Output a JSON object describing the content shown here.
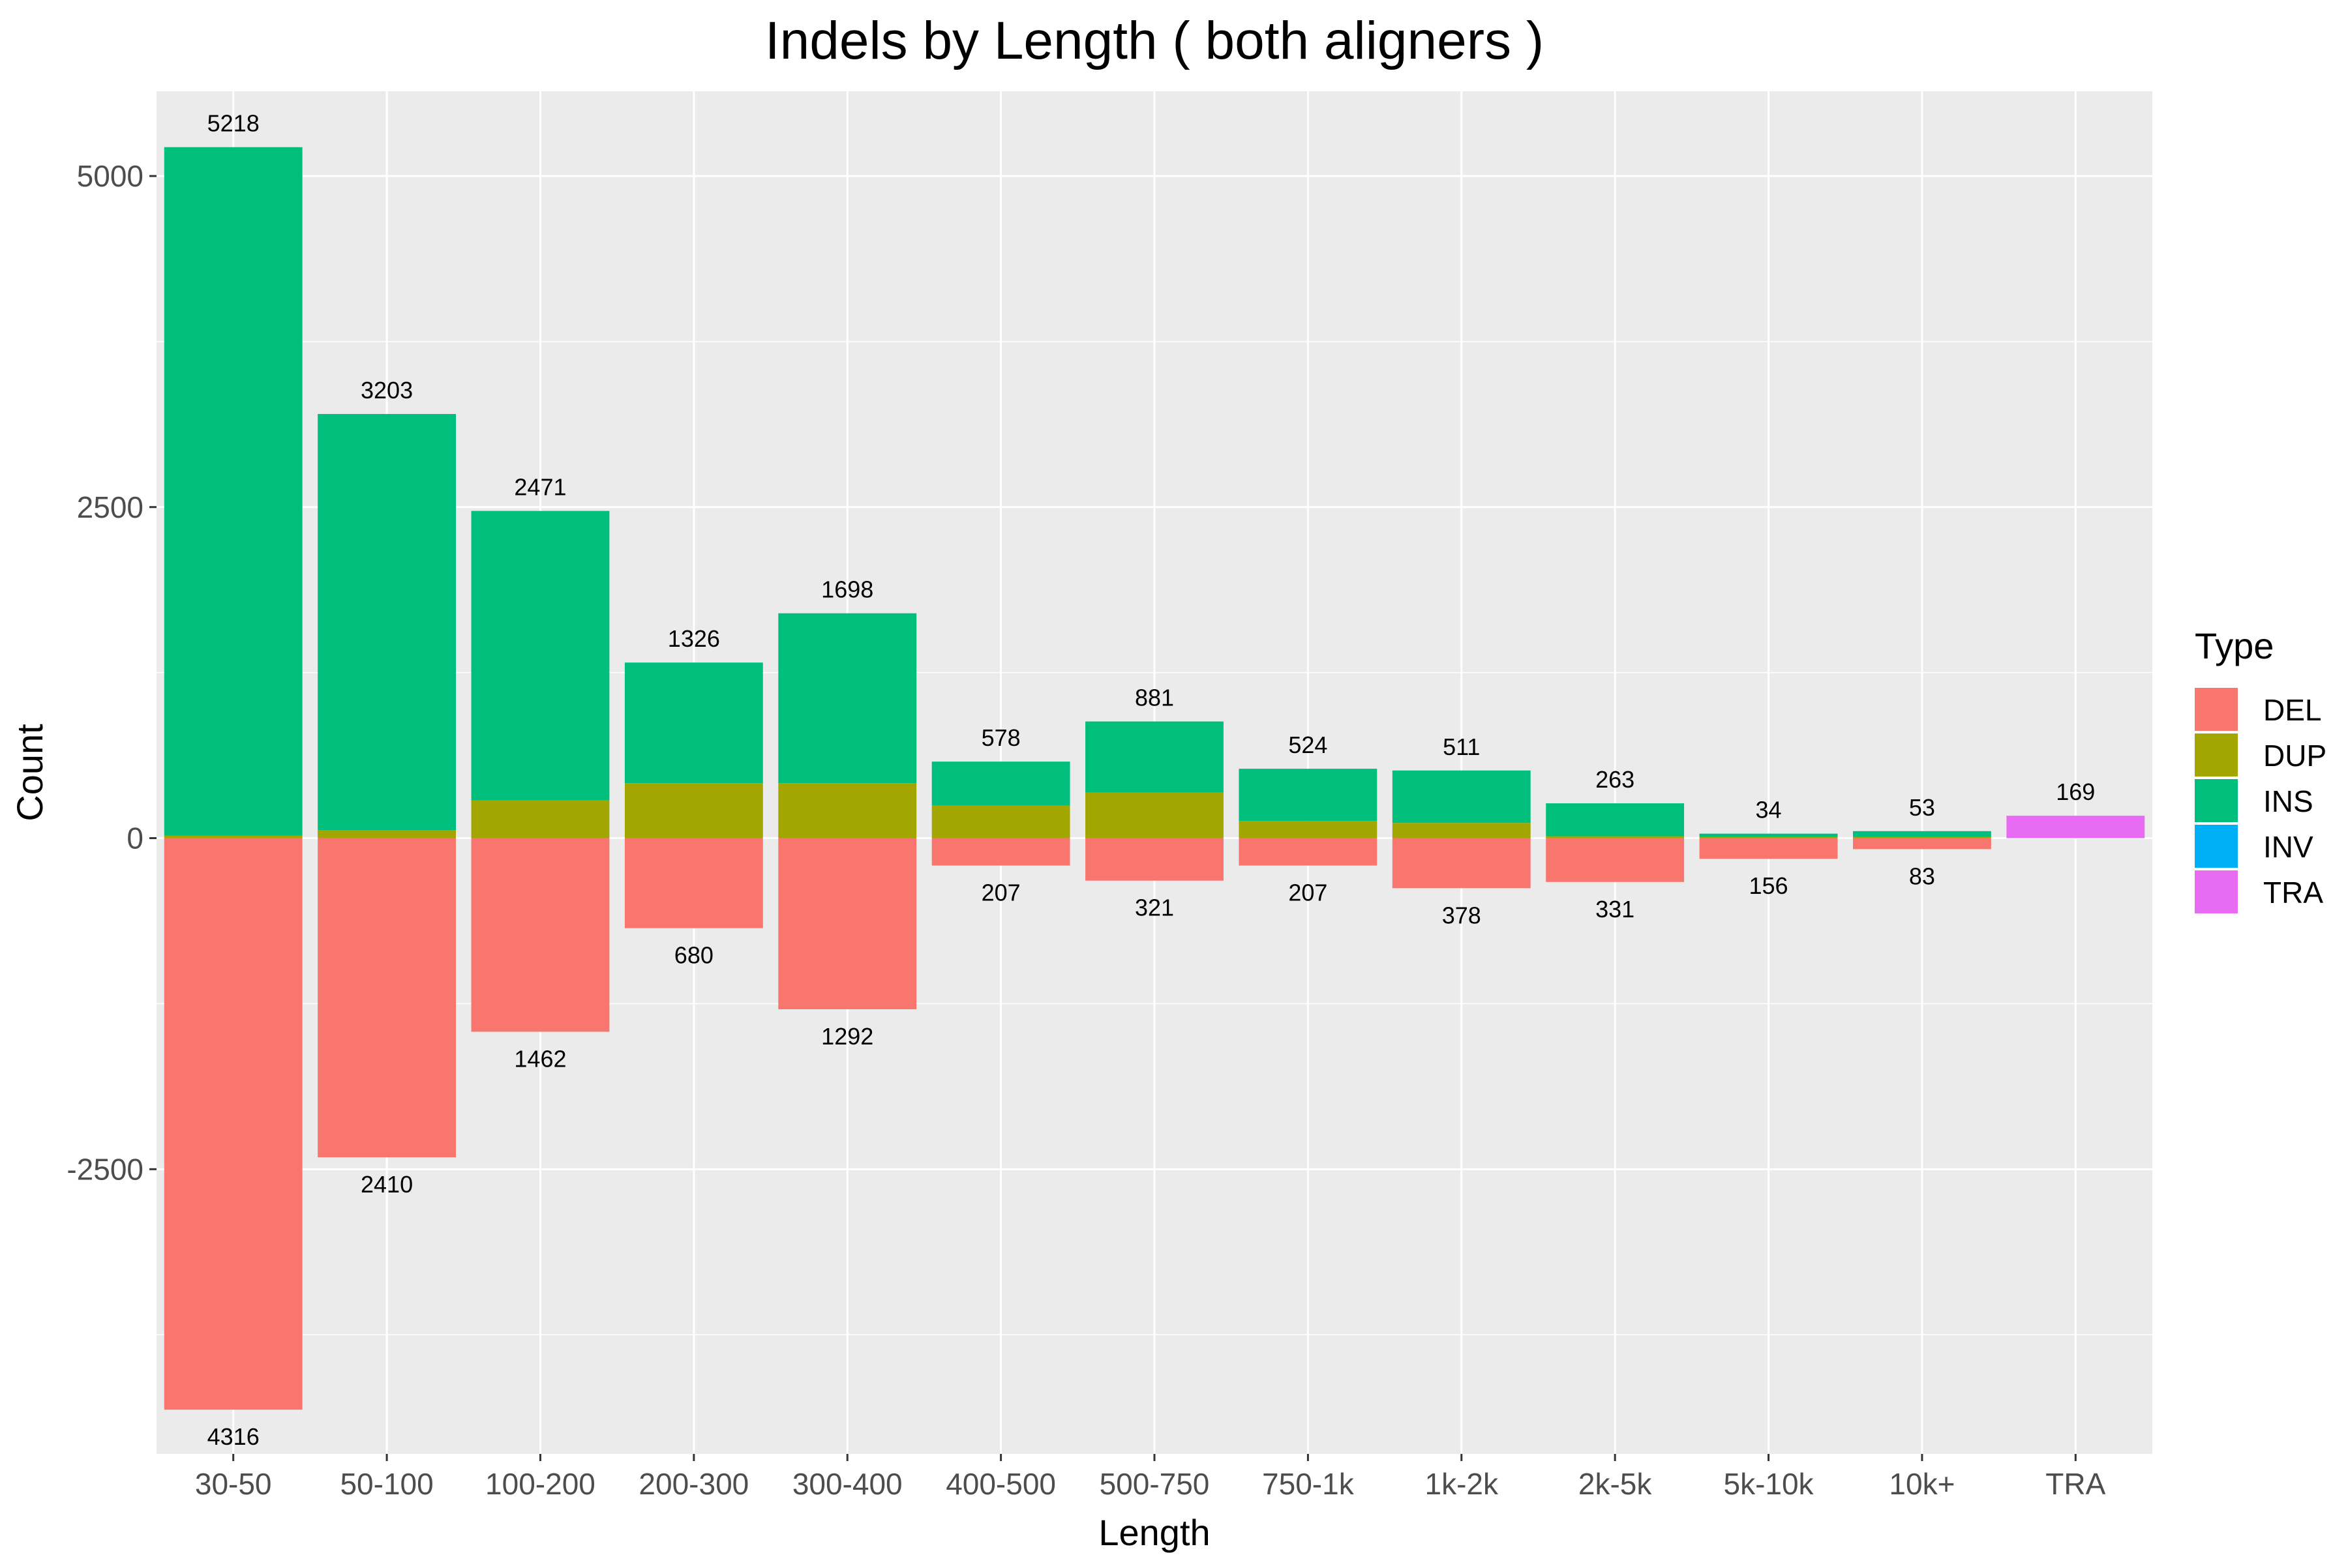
{
  "chart_data": {
    "type": "bar",
    "title": "Indels by Length ( both aligners )",
    "xlabel": "Length",
    "ylabel": "Count",
    "ylim": [
      -4650,
      5640
    ],
    "y_ticks": [
      -2500,
      0,
      2500,
      5000
    ],
    "grid": true,
    "legend_position": "right",
    "legend_title": "Type",
    "categories": [
      "30-50",
      "50-100",
      "100-200",
      "200-300",
      "300-400",
      "400-500",
      "500-750",
      "750-1k",
      "1k-2k",
      "2k-5k",
      "5k-10k",
      "10k+",
      "TRA"
    ],
    "series": [
      {
        "name": "DEL",
        "color": "#F8766D",
        "values": [
          -4316,
          -2410,
          -1462,
          -680,
          -1292,
          -207,
          -321,
          -207,
          -378,
          -331,
          -156,
          -83,
          0
        ]
      },
      {
        "name": "DUP",
        "color": "#A3A500",
        "values": [
          20,
          60,
          285,
          415,
          415,
          245,
          345,
          130,
          115,
          15,
          8,
          8,
          0
        ]
      },
      {
        "name": "INS",
        "color": "#00BF7D",
        "values": [
          5198,
          3143,
          2186,
          911,
          1283,
          333,
          536,
          394,
          396,
          248,
          26,
          45,
          0
        ]
      },
      {
        "name": "INV",
        "color": "#00B0F6",
        "values": [
          0,
          0,
          0,
          0,
          0,
          0,
          0,
          0,
          0,
          0,
          0,
          0,
          0
        ]
      },
      {
        "name": "TRA",
        "color": "#E76BF3",
        "values": [
          0,
          0,
          0,
          0,
          0,
          0,
          0,
          0,
          0,
          0,
          0,
          0,
          169
        ]
      }
    ],
    "positive_totals": [
      "5218",
      "3203",
      "2471",
      "1326",
      "1698",
      "578",
      "881",
      "524",
      "511",
      "263",
      "34",
      "53",
      "169"
    ],
    "negative_totals": [
      "4316",
      "2410",
      "1462",
      "680",
      "1292",
      "207",
      "321",
      "207",
      "378",
      "331",
      "156",
      "83",
      ""
    ]
  }
}
